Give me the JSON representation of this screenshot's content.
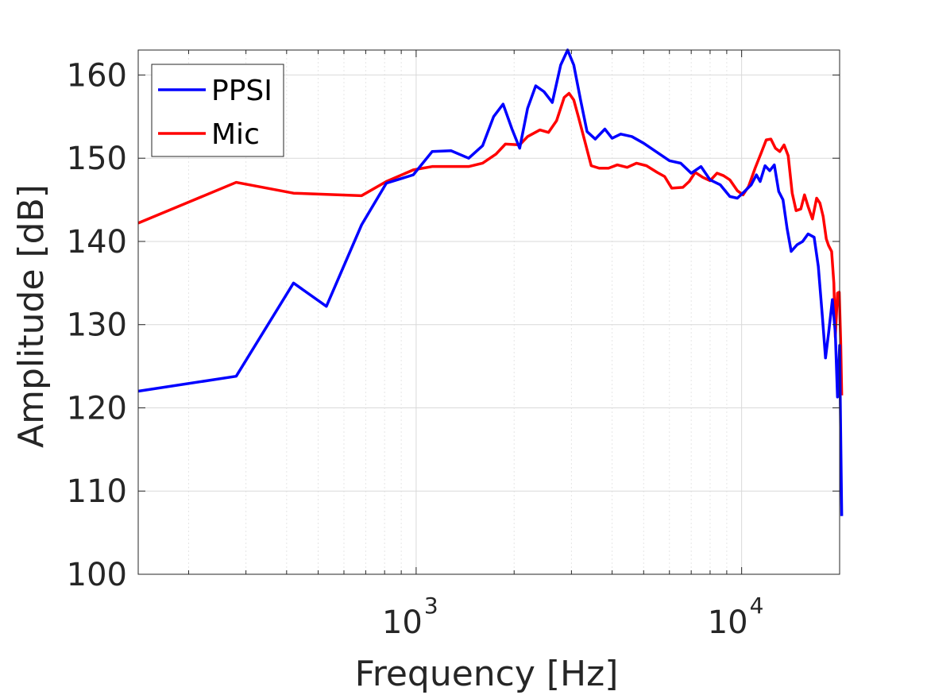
{
  "chart_data": {
    "type": "line",
    "xscale": "log",
    "xlabel": "Frequency [Hz]",
    "ylabel": "Amplitude [dB]",
    "xlim": [
      140,
      20000
    ],
    "ylim": [
      100,
      163
    ],
    "yticks": [
      100,
      110,
      120,
      130,
      140,
      150,
      160
    ],
    "xticks": [
      {
        "base": "10",
        "exp": "3",
        "value": 1000
      },
      {
        "base": "10",
        "exp": "4",
        "value": 10000
      }
    ],
    "grid": true,
    "legend": "top-left",
    "series": [
      {
        "name": "PPSI",
        "color": "#0000ff",
        "points": [
          [
            140,
            122
          ],
          [
            280,
            123.8
          ],
          [
            420,
            135
          ],
          [
            530,
            132.2
          ],
          [
            680,
            142
          ],
          [
            810,
            147
          ],
          [
            980,
            148
          ],
          [
            1120,
            150.8
          ],
          [
            1280,
            150.9
          ],
          [
            1450,
            150
          ],
          [
            1600,
            151.5
          ],
          [
            1730,
            155
          ],
          [
            1850,
            156.5
          ],
          [
            1970,
            153.5
          ],
          [
            2080,
            151.2
          ],
          [
            2200,
            156
          ],
          [
            2330,
            158.7
          ],
          [
            2470,
            158
          ],
          [
            2620,
            156.7
          ],
          [
            2780,
            161.2
          ],
          [
            2920,
            163
          ],
          [
            3050,
            161.2
          ],
          [
            3200,
            157
          ],
          [
            3350,
            153.2
          ],
          [
            3550,
            152.3
          ],
          [
            3800,
            153.5
          ],
          [
            4000,
            152.4
          ],
          [
            4250,
            152.9
          ],
          [
            4600,
            152.6
          ],
          [
            5000,
            151.8
          ],
          [
            5500,
            150.7
          ],
          [
            6000,
            149.7
          ],
          [
            6500,
            149.4
          ],
          [
            7000,
            148.2
          ],
          [
            7500,
            149
          ],
          [
            8000,
            147.4
          ],
          [
            8600,
            146.8
          ],
          [
            9200,
            145.4
          ],
          [
            9700,
            145.2
          ],
          [
            10200,
            146
          ],
          [
            10700,
            146.8
          ],
          [
            11100,
            148
          ],
          [
            11400,
            147.2
          ],
          [
            11800,
            149.1
          ],
          [
            12200,
            148.5
          ],
          [
            12600,
            149.2
          ],
          [
            13000,
            146
          ],
          [
            13400,
            145
          ],
          [
            13800,
            141.5
          ],
          [
            14200,
            138.8
          ],
          [
            14800,
            139.6
          ],
          [
            15400,
            140
          ],
          [
            16000,
            140.9
          ],
          [
            16700,
            140.5
          ],
          [
            17200,
            137
          ],
          [
            17700,
            131
          ],
          [
            18100,
            126
          ],
          [
            18500,
            129
          ],
          [
            19000,
            133
          ],
          [
            19400,
            129
          ],
          [
            19700,
            121.3
          ],
          [
            20000,
            127.5
          ],
          [
            20150,
            117
          ],
          [
            20300,
            107
          ]
        ]
      },
      {
        "name": "Mic",
        "color": "#ff0000",
        "points": [
          [
            140,
            142.2
          ],
          [
            280,
            147.1
          ],
          [
            420,
            145.8
          ],
          [
            680,
            145.5
          ],
          [
            810,
            147.2
          ],
          [
            980,
            148.6
          ],
          [
            1120,
            149
          ],
          [
            1280,
            149
          ],
          [
            1450,
            149
          ],
          [
            1600,
            149.4
          ],
          [
            1760,
            150.5
          ],
          [
            1880,
            151.7
          ],
          [
            2080,
            151.6
          ],
          [
            2200,
            152.6
          ],
          [
            2400,
            153.4
          ],
          [
            2550,
            153.1
          ],
          [
            2700,
            154.5
          ],
          [
            2850,
            157.3
          ],
          [
            2950,
            157.8
          ],
          [
            3050,
            157
          ],
          [
            3150,
            155
          ],
          [
            3300,
            152
          ],
          [
            3450,
            149.1
          ],
          [
            3650,
            148.8
          ],
          [
            3900,
            148.8
          ],
          [
            4150,
            149.2
          ],
          [
            4450,
            148.9
          ],
          [
            4750,
            149.4
          ],
          [
            5100,
            149.1
          ],
          [
            5500,
            148.3
          ],
          [
            5800,
            147.8
          ],
          [
            6100,
            146.4
          ],
          [
            6600,
            146.5
          ],
          [
            6900,
            147.2
          ],
          [
            7200,
            148.3
          ],
          [
            7600,
            147.7
          ],
          [
            8000,
            147.3
          ],
          [
            8400,
            148.2
          ],
          [
            8800,
            147.9
          ],
          [
            9200,
            147.4
          ],
          [
            9700,
            146.1
          ],
          [
            10100,
            145.6
          ],
          [
            10500,
            146.6
          ],
          [
            11000,
            148.8
          ],
          [
            11500,
            150.7
          ],
          [
            11900,
            152.2
          ],
          [
            12300,
            152.3
          ],
          [
            12700,
            151.2
          ],
          [
            13100,
            150.8
          ],
          [
            13500,
            151.6
          ],
          [
            13900,
            150.3
          ],
          [
            14300,
            145.8
          ],
          [
            14700,
            143.7
          ],
          [
            15200,
            143.9
          ],
          [
            15600,
            145.6
          ],
          [
            16000,
            144.2
          ],
          [
            16500,
            142.7
          ],
          [
            17000,
            145.2
          ],
          [
            17400,
            144.6
          ],
          [
            17800,
            143
          ],
          [
            18200,
            140.3
          ],
          [
            18500,
            139.5
          ],
          [
            18900,
            138.8
          ],
          [
            19200,
            135
          ],
          [
            19400,
            128.5
          ],
          [
            19700,
            133.8
          ],
          [
            19950,
            133.9
          ],
          [
            20150,
            128
          ],
          [
            20300,
            121.5
          ]
        ]
      }
    ]
  }
}
